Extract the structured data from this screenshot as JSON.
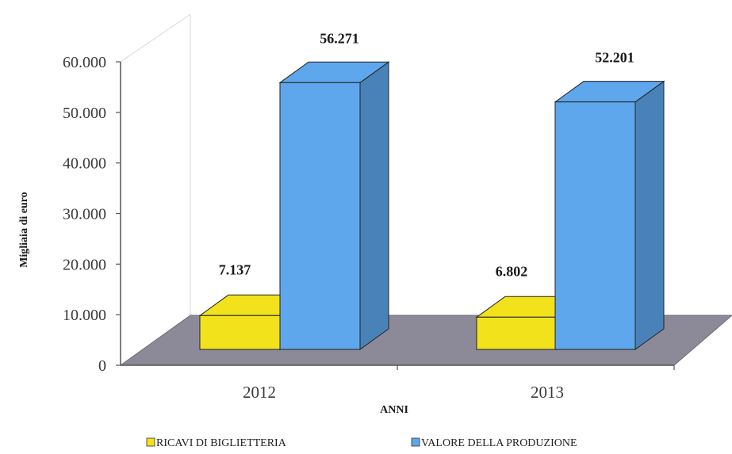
{
  "chart_data": {
    "type": "bar",
    "style": "3d-clustered-column",
    "title": "",
    "xlabel": "ANNI",
    "ylabel": "Migliaia di euro",
    "categories": [
      "2012",
      "2013"
    ],
    "series": [
      {
        "name": "RICAVI DI BIGLIETTERIA",
        "values": [
          7137,
          6802
        ],
        "value_labels": [
          "7.137",
          "6.802"
        ],
        "color": "#f2e21c"
      },
      {
        "name": "VALORE DELLA PRODUZIONE",
        "values": [
          56271,
          52201
        ],
        "value_labels": [
          "56.271",
          "52.201"
        ],
        "color": "#5ea7ec"
      }
    ],
    "ylim": [
      0,
      60000
    ],
    "yticks": [
      0,
      10000,
      20000,
      30000,
      40000,
      50000,
      60000
    ],
    "ytick_labels": [
      "0",
      "10.000",
      "20.000",
      "30.000",
      "40.000",
      "50.000",
      "60.000"
    ],
    "grid": false,
    "legend_position": "bottom",
    "colors": {
      "floor": "#8c8a98",
      "wall": "#ffffff",
      "axis": "#555555"
    }
  }
}
